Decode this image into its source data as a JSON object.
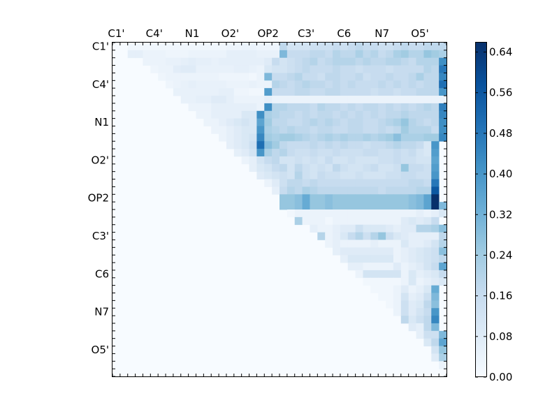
{
  "chart_data": {
    "type": "heatmap",
    "title": "",
    "xlabel": "",
    "ylabel": "",
    "tick_labels_x": [
      "C1'",
      "C4'",
      "N1",
      "O2'",
      "OP2",
      "C3'",
      "C6",
      "N7",
      "O5'"
    ],
    "tick_labels_y": [
      "C1'",
      "C4'",
      "N1",
      "O2'",
      "OP2",
      "C3'",
      "C6",
      "N7",
      "O5'"
    ],
    "tick_positions": [
      0,
      5,
      10,
      15,
      20,
      25,
      30,
      35,
      40
    ],
    "n_rows": 44,
    "n_cols": 44,
    "colormap": "Blues",
    "colorbar": {
      "min": 0.0,
      "max": 0.66,
      "ticks": [
        0.0,
        0.08,
        0.16,
        0.24,
        0.32,
        0.4,
        0.48,
        0.56,
        0.64
      ],
      "tick_labels": [
        "0.00",
        "0.08",
        "0.16",
        "0.24",
        "0.32",
        "0.40",
        "0.48",
        "0.56",
        "0.64"
      ]
    },
    "rows": [
      {
        "r": 0,
        "s": 2,
        "v": [
          0.02,
          0.02,
          0.02,
          0.02,
          0.02,
          0.02,
          0.02,
          0.02,
          0.02,
          0.02,
          0.02,
          0.02,
          0.02,
          0.03,
          0.03,
          0.04,
          0.04,
          0.03,
          0.03,
          0.03,
          0.18,
          0.12,
          0.12,
          0.12,
          0.14,
          0.14,
          0.14,
          0.16,
          0.14,
          0.16,
          0.18,
          0.16,
          0.16,
          0.14,
          0.14,
          0.16,
          0.18,
          0.16,
          0.16,
          0.18,
          0.18,
          0.18,
          0.38,
          0.22
        ]
      },
      {
        "r": 1,
        "s": 2,
        "v": [
          0.06,
          0.06,
          0.04,
          0.04,
          0.04,
          0.03,
          0.03,
          0.03,
          0.04,
          0.04,
          0.04,
          0.04,
          0.04,
          0.06,
          0.06,
          0.06,
          0.06,
          0.05,
          0.05,
          0.05,
          0.3,
          0.16,
          0.16,
          0.16,
          0.18,
          0.18,
          0.16,
          0.2,
          0.18,
          0.18,
          0.22,
          0.18,
          0.2,
          0.16,
          0.18,
          0.22,
          0.24,
          0.2,
          0.2,
          0.26,
          0.24,
          0.22,
          0.4,
          0.18
        ]
      },
      {
        "r": 2,
        "s": 4,
        "v": [
          0.04,
          0.04,
          0.04,
          0.05,
          0.05,
          0.06,
          0.07,
          0.06,
          0.06,
          0.05,
          0.06,
          0.06,
          0.06,
          0.06,
          0.06,
          0.06,
          0.08,
          0.16,
          0.12,
          0.14,
          0.16,
          0.18,
          0.2,
          0.16,
          0.18,
          0.2,
          0.2,
          0.2,
          0.18,
          0.2,
          0.18,
          0.18,
          0.2,
          0.2,
          0.18,
          0.16,
          0.2,
          0.2,
          0.2,
          0.42
        ]
      },
      {
        "r": 3,
        "s": 5,
        "v": [
          0.03,
          0.04,
          0.04,
          0.07,
          0.08,
          0.08,
          0.05,
          0.05,
          0.05,
          0.05,
          0.05,
          0.06,
          0.06,
          0.05,
          0.04,
          0.1,
          0.12,
          0.12,
          0.14,
          0.16,
          0.18,
          0.16,
          0.16,
          0.16,
          0.18,
          0.16,
          0.16,
          0.14,
          0.16,
          0.16,
          0.16,
          0.14,
          0.16,
          0.16,
          0.16,
          0.16,
          0.2,
          0.18,
          0.48
        ]
      },
      {
        "r": 4,
        "s": 6,
        "v": [
          0.03,
          0.04,
          0.04,
          0.04,
          0.04,
          0.04,
          0.04,
          0.04,
          0.03,
          0.03,
          0.03,
          0.03,
          0.02,
          0.04,
          0.3,
          0.16,
          0.16,
          0.18,
          0.2,
          0.16,
          0.16,
          0.14,
          0.18,
          0.18,
          0.16,
          0.16,
          0.18,
          0.14,
          0.16,
          0.16,
          0.18,
          0.16,
          0.16,
          0.18,
          0.22,
          0.18,
          0.18,
          0.44
        ]
      },
      {
        "r": 5,
        "s": 7,
        "v": [
          0.03,
          0.04,
          0.05,
          0.06,
          0.05,
          0.05,
          0.05,
          0.05,
          0.04,
          0.04,
          0.04,
          0.05,
          0.04,
          0.04,
          0.2,
          0.18,
          0.16,
          0.18,
          0.2,
          0.18,
          0.18,
          0.16,
          0.18,
          0.16,
          0.18,
          0.16,
          0.16,
          0.16,
          0.18,
          0.16,
          0.18,
          0.16,
          0.18,
          0.16,
          0.18,
          0.18,
          0.5
        ]
      },
      {
        "r": 6,
        "s": 8,
        "v": [
          0.05,
          0.05,
          0.05,
          0.05,
          0.05,
          0.05,
          0.06,
          0.06,
          0.03,
          0.03,
          0.02,
          0.02,
          0.38,
          0.16,
          0.16,
          0.16,
          0.18,
          0.18,
          0.16,
          0.16,
          0.18,
          0.18,
          0.16,
          0.16,
          0.16,
          0.16,
          0.14,
          0.16,
          0.16,
          0.14,
          0.16,
          0.16,
          0.18,
          0.18,
          0.18,
          0.4
        ]
      },
      {
        "r": 7,
        "s": 9,
        "v": [
          0.05,
          0.05,
          0.06,
          0.06,
          0.08,
          0.08,
          0.06,
          0.04,
          0.04,
          0.04,
          0.04,
          0.06,
          0.04,
          0.04,
          0.04,
          0.04,
          0.04,
          0.04,
          0.04,
          0.04,
          0.04,
          0.04,
          0.04,
          0.04,
          0.04,
          0.04,
          0.04,
          0.04,
          0.04,
          0.04,
          0.04,
          0.04,
          0.04,
          0.04,
          0.04
        ]
      },
      {
        "r": 8,
        "s": 10,
        "v": [
          0.04,
          0.04,
          0.04,
          0.06,
          0.06,
          0.06,
          0.06,
          0.06,
          0.06,
          0.04,
          0.42,
          0.2,
          0.2,
          0.18,
          0.18,
          0.18,
          0.16,
          0.2,
          0.18,
          0.18,
          0.16,
          0.18,
          0.16,
          0.18,
          0.18,
          0.16,
          0.18,
          0.16,
          0.18,
          0.16,
          0.18,
          0.2,
          0.18,
          0.46
        ]
      },
      {
        "r": 9,
        "s": 11,
        "v": [
          0.04,
          0.04,
          0.06,
          0.06,
          0.06,
          0.06,
          0.1,
          0.1,
          0.42,
          0.22,
          0.2,
          0.18,
          0.18,
          0.16,
          0.18,
          0.16,
          0.18,
          0.18,
          0.16,
          0.18,
          0.16,
          0.18,
          0.16,
          0.18,
          0.16,
          0.18,
          0.18,
          0.2,
          0.18,
          0.18,
          0.18,
          0.18,
          0.44
        ]
      },
      {
        "r": 10,
        "s": 12,
        "v": [
          0.04,
          0.04,
          0.06,
          0.08,
          0.1,
          0.12,
          0.1,
          0.36,
          0.24,
          0.18,
          0.18,
          0.16,
          0.16,
          0.18,
          0.2,
          0.18,
          0.2,
          0.18,
          0.16,
          0.18,
          0.18,
          0.16,
          0.16,
          0.18,
          0.2,
          0.22,
          0.26,
          0.2,
          0.18,
          0.16,
          0.18,
          0.42
        ]
      },
      {
        "r": 11,
        "s": 13,
        "v": [
          0.04,
          0.04,
          0.06,
          0.08,
          0.1,
          0.1,
          0.4,
          0.22,
          0.2,
          0.18,
          0.2,
          0.18,
          0.18,
          0.16,
          0.18,
          0.18,
          0.16,
          0.16,
          0.18,
          0.18,
          0.16,
          0.16,
          0.18,
          0.16,
          0.18,
          0.24,
          0.2,
          0.2,
          0.2,
          0.16,
          0.42
        ]
      },
      {
        "r": 12,
        "s": 14,
        "v": [
          0.04,
          0.06,
          0.08,
          0.1,
          0.12,
          0.44,
          0.24,
          0.22,
          0.24,
          0.24,
          0.22,
          0.2,
          0.18,
          0.2,
          0.22,
          0.2,
          0.22,
          0.2,
          0.2,
          0.22,
          0.2,
          0.22,
          0.24,
          0.28,
          0.22,
          0.22,
          0.22,
          0.24,
          0.24,
          0.44
        ]
      },
      {
        "r": 13,
        "s": 15,
        "v": [
          0.06,
          0.08,
          0.1,
          0.14,
          0.5,
          0.28,
          0.24,
          0.18,
          0.16,
          0.16,
          0.16,
          0.18,
          0.16,
          0.18,
          0.16,
          0.18,
          0.16,
          0.16,
          0.14,
          0.16,
          0.16,
          0.18,
          0.2,
          0.18,
          0.18,
          0.16,
          0.1,
          0.4
        ]
      },
      {
        "r": 14,
        "s": 16,
        "v": [
          0.06,
          0.08,
          0.12,
          0.4,
          0.22,
          0.18,
          0.2,
          0.16,
          0.14,
          0.14,
          0.16,
          0.14,
          0.14,
          0.16,
          0.14,
          0.14,
          0.14,
          0.16,
          0.16,
          0.14,
          0.14,
          0.16,
          0.14,
          0.16,
          0.12,
          0.1,
          0.38
        ]
      },
      {
        "r": 15,
        "s": 17,
        "v": [
          0.04,
          0.06,
          0.12,
          0.16,
          0.18,
          0.12,
          0.12,
          0.14,
          0.12,
          0.14,
          0.12,
          0.16,
          0.12,
          0.12,
          0.14,
          0.12,
          0.12,
          0.12,
          0.14,
          0.14,
          0.16,
          0.14,
          0.14,
          0.12,
          0.12,
          0.36
        ]
      },
      {
        "r": 16,
        "s": 18,
        "v": [
          0.06,
          0.1,
          0.12,
          0.16,
          0.18,
          0.12,
          0.18,
          0.14,
          0.12,
          0.14,
          0.12,
          0.18,
          0.14,
          0.12,
          0.12,
          0.14,
          0.16,
          0.12,
          0.12,
          0.14,
          0.26,
          0.16,
          0.16,
          0.14,
          0.38
        ]
      },
      {
        "r": 17,
        "s": 19,
        "v": [
          0.08,
          0.1,
          0.12,
          0.14,
          0.12,
          0.2,
          0.14,
          0.12,
          0.16,
          0.14,
          0.14,
          0.12,
          0.12,
          0.14,
          0.12,
          0.12,
          0.12,
          0.14,
          0.14,
          0.16,
          0.16,
          0.14,
          0.14,
          0.4
        ]
      },
      {
        "r": 18,
        "s": 20,
        "v": [
          0.04,
          0.08,
          0.14,
          0.18,
          0.18,
          0.16,
          0.18,
          0.16,
          0.16,
          0.16,
          0.16,
          0.16,
          0.16,
          0.16,
          0.16,
          0.16,
          0.16,
          0.16,
          0.16,
          0.18,
          0.18,
          0.16,
          0.48
        ]
      },
      {
        "r": 19,
        "s": 21,
        "v": [
          0.06,
          0.16,
          0.2,
          0.18,
          0.22,
          0.2,
          0.18,
          0.18,
          0.18,
          0.18,
          0.18,
          0.18,
          0.18,
          0.18,
          0.16,
          0.18,
          0.18,
          0.18,
          0.18,
          0.2,
          0.2,
          0.56
        ]
      },
      {
        "r": 20,
        "s": 22,
        "v": [
          0.26,
          0.26,
          0.28,
          0.34,
          0.26,
          0.26,
          0.28,
          0.26,
          0.26,
          0.26,
          0.26,
          0.26,
          0.26,
          0.26,
          0.26,
          0.26,
          0.26,
          0.28,
          0.3,
          0.36,
          0.66
        ]
      },
      {
        "r": 21,
        "s": 22,
        "v": [
          0.26,
          0.26,
          0.28,
          0.34,
          0.26,
          0.26,
          0.28,
          0.26,
          0.26,
          0.26,
          0.26,
          0.26,
          0.26,
          0.26,
          0.26,
          0.26,
          0.26,
          0.28,
          0.3,
          0.36,
          0.66,
          0.3
        ]
      },
      {
        "r": 22,
        "s": 23,
        "v": [
          0.02,
          0.04,
          0.04,
          0.04,
          0.04,
          0.04,
          0.04,
          0.04,
          0.04,
          0.04,
          0.04,
          0.04,
          0.04,
          0.04,
          0.04,
          0.04,
          0.04,
          0.06,
          0.04,
          0.06,
          0.1
        ]
      },
      {
        "r": 23,
        "s": 24,
        "v": [
          0.22,
          0.04,
          0.04,
          0.04,
          0.02,
          0.04,
          0.04,
          0.04,
          0.04,
          0.04,
          0.04,
          0.04,
          0.04,
          0.04,
          0.08,
          0.1,
          0.08,
          0.1,
          0.16
        ]
      },
      {
        "r": 24,
        "s": 26,
        "v": [
          0.06,
          0.04,
          0.04,
          0.06,
          0.08,
          0.08,
          0.14,
          0.1,
          0.1,
          0.1,
          0.08,
          0.06,
          0.08,
          0.08,
          0.2,
          0.2,
          0.22,
          0.28
        ]
      },
      {
        "r": 25,
        "s": 27,
        "v": [
          0.2,
          0.04,
          0.06,
          0.1,
          0.16,
          0.2,
          0.14,
          0.2,
          0.26,
          0.14,
          0.1,
          0.08,
          0.06,
          0.06,
          0.06,
          0.06,
          0.18
        ]
      },
      {
        "r": 26,
        "s": 28,
        "v": [
          0.04,
          0.06,
          0.04,
          0.04,
          0.04,
          0.04,
          0.06,
          0.04,
          0.04,
          0.04,
          0.1,
          0.06,
          0.06,
          0.08,
          0.12,
          0.2
        ]
      },
      {
        "r": 27,
        "s": 29,
        "v": [
          0.06,
          0.08,
          0.08,
          0.08,
          0.08,
          0.08,
          0.08,
          0.08,
          0.04,
          0.06,
          0.08,
          0.1,
          0.12,
          0.14,
          0.28
        ]
      },
      {
        "r": 28,
        "s": 30,
        "v": [
          0.06,
          0.1,
          0.1,
          0.1,
          0.1,
          0.1,
          0.1,
          0.04,
          0.06,
          0.08,
          0.1,
          0.12,
          0.14,
          0.18
        ]
      },
      {
        "r": 29,
        "s": 31,
        "v": [
          0.06,
          0.06,
          0.04,
          0.04,
          0.04,
          0.04,
          0.08,
          0.04,
          0.06,
          0.08,
          0.12,
          0.16,
          0.36
        ]
      },
      {
        "r": 30,
        "s": 32,
        "v": [
          0.04,
          0.12,
          0.12,
          0.12,
          0.12,
          0.12,
          0.04,
          0.1,
          0.06,
          0.08,
          0.1,
          0.16
        ]
      },
      {
        "r": 31,
        "s": 33,
        "v": [
          0.02,
          0.02,
          0.02,
          0.02,
          0.02,
          0.04,
          0.1,
          0.04,
          0.06,
          0.08,
          0.1
        ]
      },
      {
        "r": 32,
        "s": 34,
        "v": [
          0.02,
          0.02,
          0.02,
          0.04,
          0.08,
          0.04,
          0.06,
          0.1,
          0.34
        ]
      },
      {
        "r": 33,
        "s": 35,
        "v": [
          0.02,
          0.02,
          0.04,
          0.12,
          0.06,
          0.08,
          0.14,
          0.3
        ]
      },
      {
        "r": 34,
        "s": 36,
        "v": [
          0.02,
          0.04,
          0.14,
          0.08,
          0.1,
          0.18,
          0.28
        ]
      },
      {
        "r": 35,
        "s": 37,
        "v": [
          0.04,
          0.14,
          0.08,
          0.12,
          0.16,
          0.4
        ]
      },
      {
        "r": 36,
        "s": 38,
        "v": [
          0.18,
          0.1,
          0.14,
          0.18,
          0.44
        ]
      },
      {
        "r": 37,
        "s": 39,
        "v": [
          0.08,
          0.06,
          0.18,
          0.3
        ]
      },
      {
        "r": 38,
        "s": 40,
        "v": [
          0.06,
          0.14,
          0.14,
          0.3
        ]
      },
      {
        "r": 39,
        "s": 41,
        "v": [
          0.1,
          0.18,
          0.36
        ]
      },
      {
        "r": 40,
        "s": 42,
        "v": [
          0.12,
          0.26
        ]
      },
      {
        "r": 41,
        "s": 42,
        "v": [
          0.08,
          0.22
        ]
      },
      {
        "r": 42,
        "s": 43,
        "v": [
          0.04
        ]
      }
    ]
  }
}
